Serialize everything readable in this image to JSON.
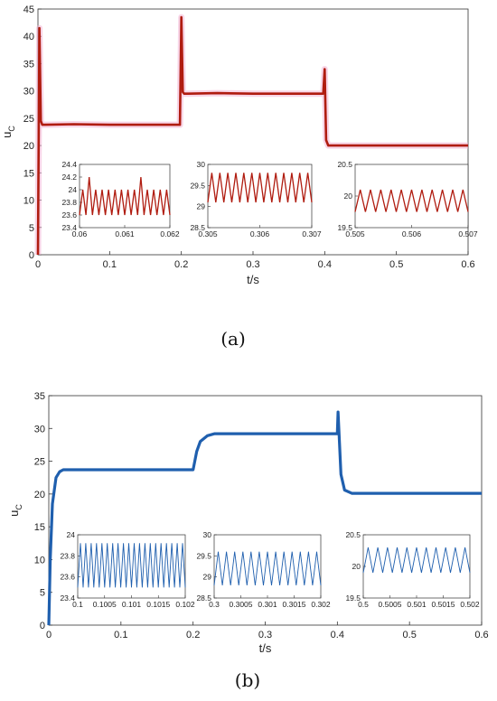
{
  "figure_captions": [
    "(a)",
    "(b)"
  ],
  "colors": {
    "panel_a": "#b01c10",
    "panel_a_glow": "#f2b3d3",
    "panel_b": "#1f5fae",
    "axis": "#333333"
  },
  "chart_data": [
    {
      "panel": "a",
      "type": "line",
      "title": "",
      "xlabel": "t/s",
      "ylabel": "u_C",
      "xlim": [
        0,
        0.6
      ],
      "ylim": [
        0,
        45
      ],
      "xticks": [
        0,
        0.1,
        0.2,
        0.3,
        0.4,
        0.5,
        0.6
      ],
      "xtick_labels": [
        "0",
        "0.1",
        "0.2",
        "0.3",
        "0.4",
        "0.5",
        "0.6"
      ],
      "yticks": [
        0,
        5,
        10,
        15,
        20,
        25,
        30,
        35,
        40,
        45
      ],
      "ytick_labels": [
        "0",
        "5",
        "10",
        "15",
        "20",
        "25",
        "30",
        "35",
        "40",
        "45"
      ],
      "grid": false,
      "series": [
        {
          "x": [
            0,
            0.002,
            0.004,
            0.006,
            0.01,
            0.05,
            0.1,
            0.15,
            0.198,
            0.2,
            0.202,
            0.204,
            0.21,
            0.25,
            0.3,
            0.35,
            0.398,
            0.4,
            0.402,
            0.405,
            0.45,
            0.5,
            0.55,
            0.6
          ],
          "y": [
            0,
            41.5,
            24.5,
            23.8,
            23.8,
            23.9,
            23.8,
            23.8,
            23.8,
            43.5,
            29.8,
            29.5,
            29.5,
            29.6,
            29.5,
            29.5,
            29.5,
            34,
            21,
            20,
            20,
            20,
            20,
            20
          ]
        }
      ],
      "insets": [
        {
          "xlim": [
            0.06,
            0.062
          ],
          "ylim": [
            23.4,
            24.4
          ],
          "xticks": [
            0.06,
            0.061,
            0.062
          ],
          "xtick_labels": [
            "0.06",
            "0.061",
            "0.062"
          ],
          "yticks": [
            23.4,
            23.6,
            23.8,
            24,
            24.2,
            24.4
          ],
          "ytick_labels": [
            "23.4",
            "23.6",
            "23.8",
            "24",
            "24.2",
            "24.4"
          ],
          "ripple": {
            "low": 23.6,
            "high": 24.0,
            "periods": 14,
            "spikes_x": [
              0.0602,
              0.0614
            ],
            "spike_high": 24.2
          }
        },
        {
          "xlim": [
            0.305,
            0.307
          ],
          "ylim": [
            28.5,
            30
          ],
          "xticks": [
            0.305,
            0.306,
            0.307
          ],
          "xtick_labels": [
            "0.305",
            "0.306",
            "0.307"
          ],
          "yticks": [
            28.5,
            29,
            29.5,
            30
          ],
          "ytick_labels": [
            "28.5",
            "29",
            "29.5",
            "30"
          ],
          "ripple": {
            "low": 29.1,
            "high": 29.8,
            "periods": 13
          }
        },
        {
          "xlim": [
            0.505,
            0.507
          ],
          "ylim": [
            19.5,
            20.5
          ],
          "xticks": [
            0.505,
            0.506,
            0.507
          ],
          "xtick_labels": [
            "0.505",
            "0.506",
            "0.507"
          ],
          "yticks": [
            19.5,
            20,
            20.5
          ],
          "ytick_labels": [
            "19.5",
            "20",
            "20.5"
          ],
          "ripple": {
            "low": 19.75,
            "high": 20.1,
            "periods": 11
          }
        }
      ]
    },
    {
      "panel": "b",
      "type": "line",
      "title": "",
      "xlabel": "t/s",
      "ylabel": "u_C",
      "xlim": [
        0,
        0.6
      ],
      "ylim": [
        0,
        35
      ],
      "xticks": [
        0,
        0.1,
        0.2,
        0.3,
        0.4,
        0.5,
        0.6
      ],
      "xtick_labels": [
        "0",
        "0.1",
        "0.2",
        "0.3",
        "0.4",
        "0.5",
        "0.6"
      ],
      "yticks": [
        0,
        5,
        10,
        15,
        20,
        25,
        30,
        35
      ],
      "ytick_labels": [
        "0",
        "5",
        "10",
        "15",
        "20",
        "25",
        "30",
        "35"
      ],
      "grid": false,
      "series": [
        {
          "x": [
            0,
            0.002,
            0.005,
            0.01,
            0.015,
            0.02,
            0.05,
            0.1,
            0.15,
            0.2,
            0.205,
            0.21,
            0.22,
            0.23,
            0.25,
            0.3,
            0.35,
            0.4,
            0.401,
            0.405,
            0.41,
            0.42,
            0.45,
            0.5,
            0.55,
            0.6
          ],
          "y": [
            0,
            10,
            18.5,
            22.5,
            23.4,
            23.7,
            23.7,
            23.7,
            23.7,
            23.7,
            26.5,
            28,
            28.9,
            29.2,
            29.2,
            29.2,
            29.2,
            29.2,
            32.5,
            23,
            20.6,
            20.1,
            20.1,
            20.1,
            20.1,
            20.1
          ]
        }
      ],
      "insets": [
        {
          "xlim": [
            0.1,
            0.102
          ],
          "ylim": [
            23.4,
            24
          ],
          "xticks": [
            0.1,
            0.1005,
            0.101,
            0.1015,
            0.102
          ],
          "xtick_labels": [
            "0.1",
            "0.1005",
            "0.101",
            "0.1015",
            "0.102"
          ],
          "yticks": [
            23.4,
            23.6,
            23.8,
            24
          ],
          "ytick_labels": [
            "23.4",
            "23.6",
            "23.8",
            "24"
          ],
          "ripple": {
            "low": 23.5,
            "high": 23.92,
            "periods": 20
          }
        },
        {
          "xlim": [
            0.3,
            0.302
          ],
          "ylim": [
            28.5,
            30
          ],
          "xticks": [
            0.3,
            0.3005,
            0.301,
            0.3015,
            0.302
          ],
          "xtick_labels": [
            "0.3",
            "0.3005",
            "0.301",
            "0.3015",
            "0.302"
          ],
          "yticks": [
            28.5,
            29,
            29.5,
            30
          ],
          "ytick_labels": [
            "28.5",
            "29",
            "29.5",
            "30"
          ],
          "ripple": {
            "low": 28.8,
            "high": 29.6,
            "periods": 13
          }
        },
        {
          "xlim": [
            0.5,
            0.502
          ],
          "ylim": [
            19.5,
            20.5
          ],
          "xticks": [
            0.5,
            0.5005,
            0.501,
            0.5015,
            0.502
          ],
          "xtick_labels": [
            "0.5",
            "0.5005",
            "0.501",
            "0.5015",
            "0.502"
          ],
          "yticks": [
            19.5,
            20,
            20.5
          ],
          "ytick_labels": [
            "19.5",
            "20",
            "20.5"
          ],
          "ripple": {
            "low": 19.9,
            "high": 20.3,
            "periods": 11
          }
        }
      ]
    }
  ]
}
